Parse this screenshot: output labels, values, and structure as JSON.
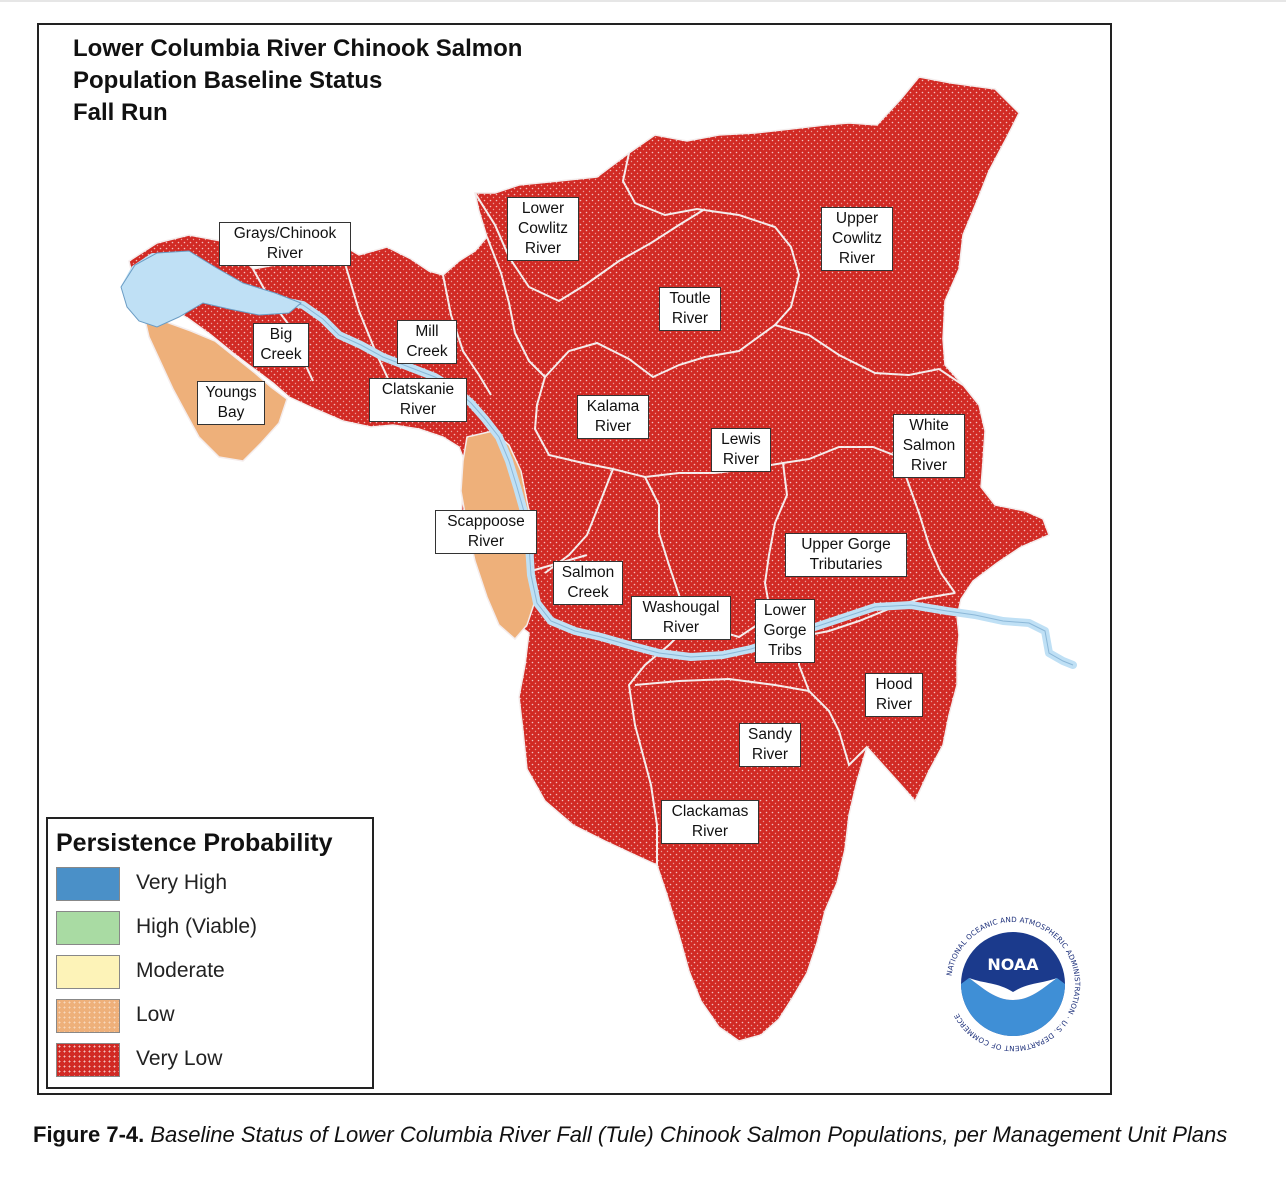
{
  "map": {
    "title_lines": [
      "Lower Columbia River Chinook Salmon",
      "Population Baseline Status",
      "Fall Run"
    ],
    "regions": [
      {
        "name": "Grays/Chinook\nRiver",
        "status": "Very Low"
      },
      {
        "name": "Big\nCreek",
        "status": "Very Low"
      },
      {
        "name": "Youngs\nBay",
        "status": "Low"
      },
      {
        "name": "Mill\nCreek",
        "status": "Very Low"
      },
      {
        "name": "Clatskanie\nRiver",
        "status": "Very Low"
      },
      {
        "name": "Lower\nCowlitz\nRiver",
        "status": "Very Low"
      },
      {
        "name": "Upper\nCowlitz\nRiver",
        "status": "Very Low"
      },
      {
        "name": "Toutle\nRiver",
        "status": "Very Low"
      },
      {
        "name": "Kalama\nRiver",
        "status": "Very Low"
      },
      {
        "name": "Lewis\nRiver",
        "status": "Very Low"
      },
      {
        "name": "White\nSalmon\nRiver",
        "status": "Very Low"
      },
      {
        "name": "Scappoose\nRiver",
        "status": "Low"
      },
      {
        "name": "Salmon\nCreek",
        "status": "Very Low"
      },
      {
        "name": "Upper Gorge\nTributaries",
        "status": "Very Low"
      },
      {
        "name": "Washougal\nRiver",
        "status": "Very Low"
      },
      {
        "name": "Lower\nGorge\nTribs",
        "status": "Very Low"
      },
      {
        "name": "Hood\nRiver",
        "status": "Very Low"
      },
      {
        "name": "Sandy\nRiver",
        "status": "Very Low"
      },
      {
        "name": "Clackamas\nRiver",
        "status": "Very Low"
      }
    ]
  },
  "legend": {
    "title": "Persistence Probability",
    "items": [
      {
        "label": "Very High",
        "color": "#4a90c8"
      },
      {
        "label": "High (Viable)",
        "color": "#a9dba3"
      },
      {
        "label": "Moderate",
        "color": "#fdf3b8"
      },
      {
        "label": "Low",
        "color": "#eeb07a"
      },
      {
        "label": "Very Low",
        "color": "#d12a24"
      }
    ]
  },
  "colors": {
    "very_low": "#d12a24",
    "low": "#eeb07a",
    "river": "#bfe0f5",
    "boundary": "#f4ecec"
  },
  "logo": {
    "wordmark": "NOAA",
    "ring_text": "NATIONAL OCEANIC AND ATMOSPHERIC ADMINISTRATION · U.S. DEPARTMENT OF COMMERCE"
  },
  "caption": {
    "label": "Figure 7-4.",
    "text": "Baseline Status of Lower Columbia River Fall (Tule) Chinook Salmon Populations, per Management Unit Plans"
  }
}
